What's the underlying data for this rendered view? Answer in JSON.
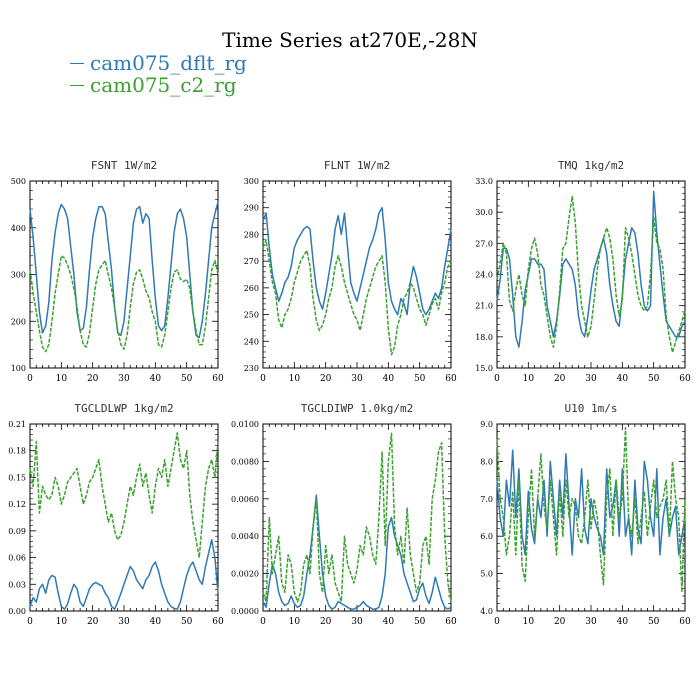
{
  "title": "Time Series at270E,-28N",
  "legend": [
    {
      "name": "cam075_dflt_rg",
      "color": "#2f7ab5"
    },
    {
      "name": "cam075_c2_rg",
      "color": "#3aa12f"
    }
  ],
  "chart_data": [
    {
      "type": "line",
      "panel_title": "FSNT   1W/m2",
      "xlim": [
        0,
        60
      ],
      "xticks": [
        "0",
        "10",
        "20",
        "30",
        "40",
        "50",
        "60"
      ],
      "ylim": [
        100,
        500
      ],
      "yticks": [
        "100",
        "200",
        "300",
        "400",
        "500"
      ],
      "ytick_values": [
        100,
        200,
        300,
        400,
        500
      ],
      "series": [
        {
          "name": "cam075_dflt_rg",
          "color": "#2f7ab5",
          "dashed": false,
          "values": [
            440,
            380,
            300,
            220,
            175,
            190,
            240,
            330,
            390,
            430,
            450,
            440,
            420,
            360,
            300,
            220,
            180,
            185,
            230,
            310,
            380,
            420,
            445,
            445,
            430,
            370,
            310,
            230,
            175,
            170,
            200,
            270,
            340,
            410,
            440,
            445,
            410,
            430,
            420,
            330,
            250,
            190,
            180,
            190,
            250,
            320,
            390,
            430,
            440,
            420,
            380,
            300,
            220,
            170,
            165,
            200,
            260,
            330,
            400,
            430,
            455
          ]
        },
        {
          "name": "cam075_c2_rg",
          "color": "#3aa12f",
          "dashed": true,
          "values": [
            310,
            260,
            220,
            180,
            145,
            135,
            150,
            200,
            260,
            300,
            340,
            335,
            320,
            300,
            270,
            230,
            180,
            150,
            145,
            175,
            230,
            280,
            310,
            320,
            330,
            300,
            270,
            230,
            180,
            150,
            140,
            170,
            230,
            280,
            305,
            310,
            290,
            265,
            250,
            220,
            200,
            150,
            145,
            170,
            220,
            270,
            305,
            310,
            290,
            285,
            290,
            270,
            220,
            180,
            150,
            150,
            190,
            250,
            310,
            330,
            300
          ]
        }
      ]
    },
    {
      "type": "line",
      "panel_title": "FLNT   1W/m2",
      "xlim": [
        0,
        60
      ],
      "xticks": [
        "0",
        "10",
        "20",
        "30",
        "40",
        "50",
        "60"
      ],
      "ylim": [
        230,
        300
      ],
      "yticks": [
        "230",
        "240",
        "250",
        "260",
        "270",
        "280",
        "290",
        "300"
      ],
      "ytick_values": [
        230,
        240,
        250,
        260,
        270,
        280,
        290,
        300
      ],
      "series": [
        {
          "name": "cam075_dflt_rg",
          "color": "#2f7ab5",
          "dashed": false,
          "values": [
            285,
            288,
            275,
            265,
            260,
            255,
            258,
            262,
            264,
            268,
            275,
            278,
            280,
            282,
            283,
            282,
            270,
            260,
            255,
            252,
            258,
            265,
            272,
            282,
            287,
            280,
            288,
            275,
            262,
            258,
            255,
            260,
            265,
            270,
            275,
            278,
            282,
            288,
            290,
            278,
            262,
            255,
            252,
            250,
            256,
            254,
            250,
            262,
            268,
            264,
            258,
            252,
            250,
            252,
            255,
            258,
            256,
            260,
            268,
            275,
            282
          ]
        },
        {
          "name": "cam075_c2_rg",
          "color": "#3aa12f",
          "dashed": true,
          "values": [
            275,
            278,
            270,
            262,
            258,
            248,
            245,
            250,
            252,
            256,
            262,
            266,
            270,
            272,
            274,
            268,
            256,
            248,
            244,
            246,
            250,
            256,
            260,
            268,
            272,
            268,
            262,
            258,
            254,
            250,
            248,
            244,
            250,
            256,
            260,
            264,
            268,
            270,
            272,
            262,
            245,
            235,
            238,
            246,
            250,
            256,
            258,
            262,
            260,
            256,
            252,
            250,
            246,
            250,
            254,
            256,
            252,
            258,
            262,
            268,
            270
          ]
        }
      ]
    },
    {
      "type": "line",
      "panel_title": "TMQ   1kg/m2",
      "xlim": [
        0,
        60
      ],
      "xticks": [
        "0",
        "10",
        "20",
        "30",
        "40",
        "50",
        "60"
      ],
      "ylim": [
        15,
        33
      ],
      "yticks": [
        "15.0",
        "18.0",
        "21.0",
        "24.0",
        "27.0",
        "30.0",
        "33.0"
      ],
      "ytick_values": [
        15,
        18,
        21,
        24,
        27,
        30,
        33
      ],
      "series": [
        {
          "name": "cam075_dflt_rg",
          "color": "#2f7ab5",
          "dashed": false,
          "values": [
            21.5,
            23.5,
            26.5,
            26.5,
            25.5,
            22.0,
            18.0,
            17.0,
            19.5,
            22.5,
            24.0,
            25.5,
            25.5,
            25.0,
            25.0,
            24.5,
            21.0,
            19.5,
            18.0,
            19.5,
            22.0,
            25.0,
            25.5,
            25.0,
            24.5,
            23.0,
            20.0,
            18.5,
            18.0,
            20.0,
            22.5,
            24.5,
            25.5,
            26.5,
            27.5,
            26.0,
            23.0,
            21.0,
            19.5,
            19.0,
            22.0,
            25.5,
            27.0,
            28.5,
            28.0,
            26.0,
            23.0,
            21.0,
            20.5,
            21.0,
            32.0,
            28.0,
            25.0,
            22.0,
            19.5,
            19.0,
            18.5,
            18.0,
            18.0,
            19.0,
            19.5
          ]
        },
        {
          "name": "cam075_c2_rg",
          "color": "#3aa12f",
          "dashed": true,
          "values": [
            23.5,
            25.0,
            27.0,
            26.0,
            21.5,
            20.5,
            22.5,
            24.0,
            22.0,
            21.0,
            24.5,
            26.5,
            27.5,
            26.0,
            23.0,
            22.0,
            20.0,
            18.0,
            17.0,
            19.0,
            22.5,
            26.5,
            27.0,
            29.5,
            31.5,
            29.0,
            24.0,
            21.0,
            19.5,
            18.0,
            19.0,
            21.5,
            24.5,
            26.5,
            27.5,
            28.5,
            27.5,
            25.5,
            22.0,
            20.0,
            21.5,
            28.5,
            27.5,
            26.0,
            24.0,
            22.0,
            21.0,
            20.5,
            21.0,
            24.0,
            29.5,
            27.0,
            26.5,
            24.5,
            20.0,
            18.0,
            16.5,
            17.5,
            18.5,
            19.5,
            20.5
          ]
        }
      ]
    },
    {
      "type": "line",
      "panel_title": "TGCLDLWP   1kg/m2",
      "xlim": [
        0,
        60
      ],
      "xticks": [
        "0",
        "10",
        "20",
        "30",
        "40",
        "50",
        "60"
      ],
      "ylim": [
        0,
        0.21
      ],
      "yticks": [
        "0.00",
        "0.03",
        "0.06",
        "0.09",
        "0.12",
        "0.15",
        "0.18",
        "0.21"
      ],
      "ytick_values": [
        0,
        0.03,
        0.06,
        0.09,
        0.12,
        0.15,
        0.18,
        0.21
      ],
      "series": [
        {
          "name": "cam075_dflt_rg",
          "color": "#2f7ab5",
          "dashed": false,
          "values": [
            0.005,
            0.015,
            0.01,
            0.025,
            0.03,
            0.02,
            0.035,
            0.04,
            0.038,
            0.02,
            0.005,
            0.002,
            0.008,
            0.02,
            0.03,
            0.025,
            0.01,
            0.005,
            0.015,
            0.025,
            0.03,
            0.032,
            0.03,
            0.028,
            0.02,
            0.015,
            0.005,
            0.002,
            0.01,
            0.02,
            0.03,
            0.04,
            0.05,
            0.045,
            0.035,
            0.03,
            0.025,
            0.035,
            0.04,
            0.05,
            0.055,
            0.045,
            0.03,
            0.02,
            0.01,
            0.005,
            0.003,
            0.002,
            0.01,
            0.025,
            0.04,
            0.05,
            0.055,
            0.045,
            0.035,
            0.03,
            0.05,
            0.065,
            0.08,
            0.06,
            0.02
          ]
        },
        {
          "name": "cam075_c2_rg",
          "color": "#3aa12f",
          "dashed": true,
          "values": [
            0.16,
            0.14,
            0.19,
            0.11,
            0.14,
            0.13,
            0.125,
            0.13,
            0.15,
            0.14,
            0.12,
            0.13,
            0.145,
            0.15,
            0.155,
            0.16,
            0.14,
            0.12,
            0.13,
            0.145,
            0.15,
            0.16,
            0.17,
            0.14,
            0.12,
            0.1,
            0.11,
            0.09,
            0.08,
            0.085,
            0.1,
            0.12,
            0.14,
            0.13,
            0.15,
            0.165,
            0.14,
            0.155,
            0.13,
            0.11,
            0.14,
            0.16,
            0.15,
            0.17,
            0.14,
            0.16,
            0.18,
            0.2,
            0.17,
            0.16,
            0.18,
            0.13,
            0.1,
            0.08,
            0.06,
            0.1,
            0.14,
            0.16,
            0.17,
            0.15,
            0.19
          ]
        }
      ]
    },
    {
      "type": "line",
      "panel_title": "TGCLDIWP   1.0kg/m2",
      "xlim": [
        0,
        60
      ],
      "xticks": [
        "0",
        "10",
        "20",
        "30",
        "40",
        "50",
        "60"
      ],
      "ylim": [
        0,
        0.01
      ],
      "yticks": [
        "0.0000",
        "0.0020",
        "0.0040",
        "0.0060",
        "0.0080",
        "0.0100"
      ],
      "ytick_values": [
        0,
        0.002,
        0.004,
        0.006,
        0.008,
        0.01
      ],
      "series": [
        {
          "name": "cam075_dflt_rg",
          "color": "#2f7ab5",
          "dashed": false,
          "values": [
            0.0005,
            0.0002,
            0.0015,
            0.0025,
            0.002,
            0.001,
            0.0005,
            0.0003,
            0.0004,
            0.0008,
            0.0004,
            0.0002,
            0.0003,
            0.0008,
            0.002,
            0.003,
            0.0045,
            0.0062,
            0.004,
            0.002,
            0.0008,
            0.0003,
            0.0001,
            0.0002,
            0.0005,
            0.0004,
            0.0003,
            0.0002,
            0.0001,
            0.0001,
            0.0002,
            0.0003,
            0.0005,
            0.0003,
            0.0002,
            0.0001,
            0.0001,
            0.0002,
            0.0008,
            0.002,
            0.0045,
            0.005,
            0.004,
            0.0035,
            0.003,
            0.002,
            0.0015,
            0.001,
            0.0005,
            0.0006,
            0.0012,
            0.0015,
            0.0008,
            0.0004,
            0.001,
            0.0018,
            0.0012,
            0.0006,
            0.0002,
            0.0001,
            0.0002
          ]
        },
        {
          "name": "cam075_c2_rg",
          "color": "#3aa12f",
          "dashed": true,
          "values": [
            0.001,
            0.0005,
            0.005,
            0.002,
            0.003,
            0.004,
            0.0015,
            0.001,
            0.003,
            0.0025,
            0.001,
            0.0005,
            0.001,
            0.0025,
            0.003,
            0.002,
            0.0045,
            0.006,
            0.002,
            0.001,
            0.0035,
            0.002,
            0.003,
            0.0015,
            0.001,
            0.0005,
            0.004,
            0.0025,
            0.002,
            0.0015,
            0.0022,
            0.0035,
            0.003,
            0.0045,
            0.004,
            0.003,
            0.0025,
            0.005,
            0.0085,
            0.0035,
            0.008,
            0.0095,
            0.0045,
            0.003,
            0.004,
            0.0025,
            0.0055,
            0.003,
            0.002,
            0.001,
            0.0015,
            0.0035,
            0.004,
            0.0025,
            0.006,
            0.007,
            0.0085,
            0.009,
            0.004,
            0.0015,
            0.0005
          ]
        }
      ]
    },
    {
      "type": "line",
      "panel_title": "U10   1m/s",
      "xlim": [
        0,
        60
      ],
      "xticks": [
        "0",
        "10",
        "20",
        "30",
        "40",
        "50",
        "60"
      ],
      "ylim": [
        4,
        9
      ],
      "yticks": [
        "4.0",
        "5.0",
        "6.0",
        "7.0",
        "8.0",
        "9.0"
      ],
      "ytick_values": [
        4,
        5,
        6,
        7,
        8,
        9
      ],
      "series": [
        {
          "name": "cam075_dflt_rg",
          "color": "#2f7ab5",
          "dashed": false,
          "values": [
            7.5,
            6.5,
            6.0,
            7.5,
            6.8,
            8.3,
            6.5,
            7.8,
            6.0,
            5.5,
            7.2,
            6.2,
            5.8,
            7.0,
            6.5,
            7.5,
            6.0,
            8.0,
            7.0,
            6.0,
            7.5,
            6.5,
            8.2,
            6.8,
            5.5,
            7.0,
            6.5,
            7.8,
            6.2,
            5.8,
            7.0,
            6.5,
            6.2,
            6.0,
            5.5,
            7.8,
            6.5,
            6.8,
            7.5,
            6.0,
            7.8,
            6.0,
            6.5,
            5.5,
            7.5,
            6.2,
            5.8,
            8.0,
            7.5,
            6.5,
            6.0,
            7.8,
            5.5,
            6.5,
            7.0,
            6.0,
            6.5,
            6.8,
            5.5,
            6.0,
            6.5
          ]
        },
        {
          "name": "cam075_c2_rg",
          "color": "#3aa12f",
          "dashed": true,
          "values": [
            8.6,
            7.0,
            6.5,
            5.5,
            6.0,
            7.2,
            5.5,
            7.5,
            5.2,
            4.8,
            6.5,
            7.8,
            6.0,
            7.0,
            8.2,
            6.8,
            6.2,
            7.5,
            6.5,
            5.5,
            7.2,
            6.0,
            7.5,
            6.5,
            7.0,
            6.8,
            6.0,
            5.8,
            6.5,
            7.5,
            6.2,
            7.0,
            6.5,
            5.5,
            4.7,
            7.0,
            7.8,
            6.0,
            7.5,
            6.5,
            7.0,
            8.9,
            6.5,
            6.0,
            7.0,
            5.8,
            6.5,
            7.2,
            6.0,
            6.8,
            7.5,
            6.5,
            6.8,
            7.0,
            7.5,
            6.0,
            8.0,
            7.0,
            6.5,
            4.5,
            7.0
          ]
        }
      ]
    }
  ]
}
